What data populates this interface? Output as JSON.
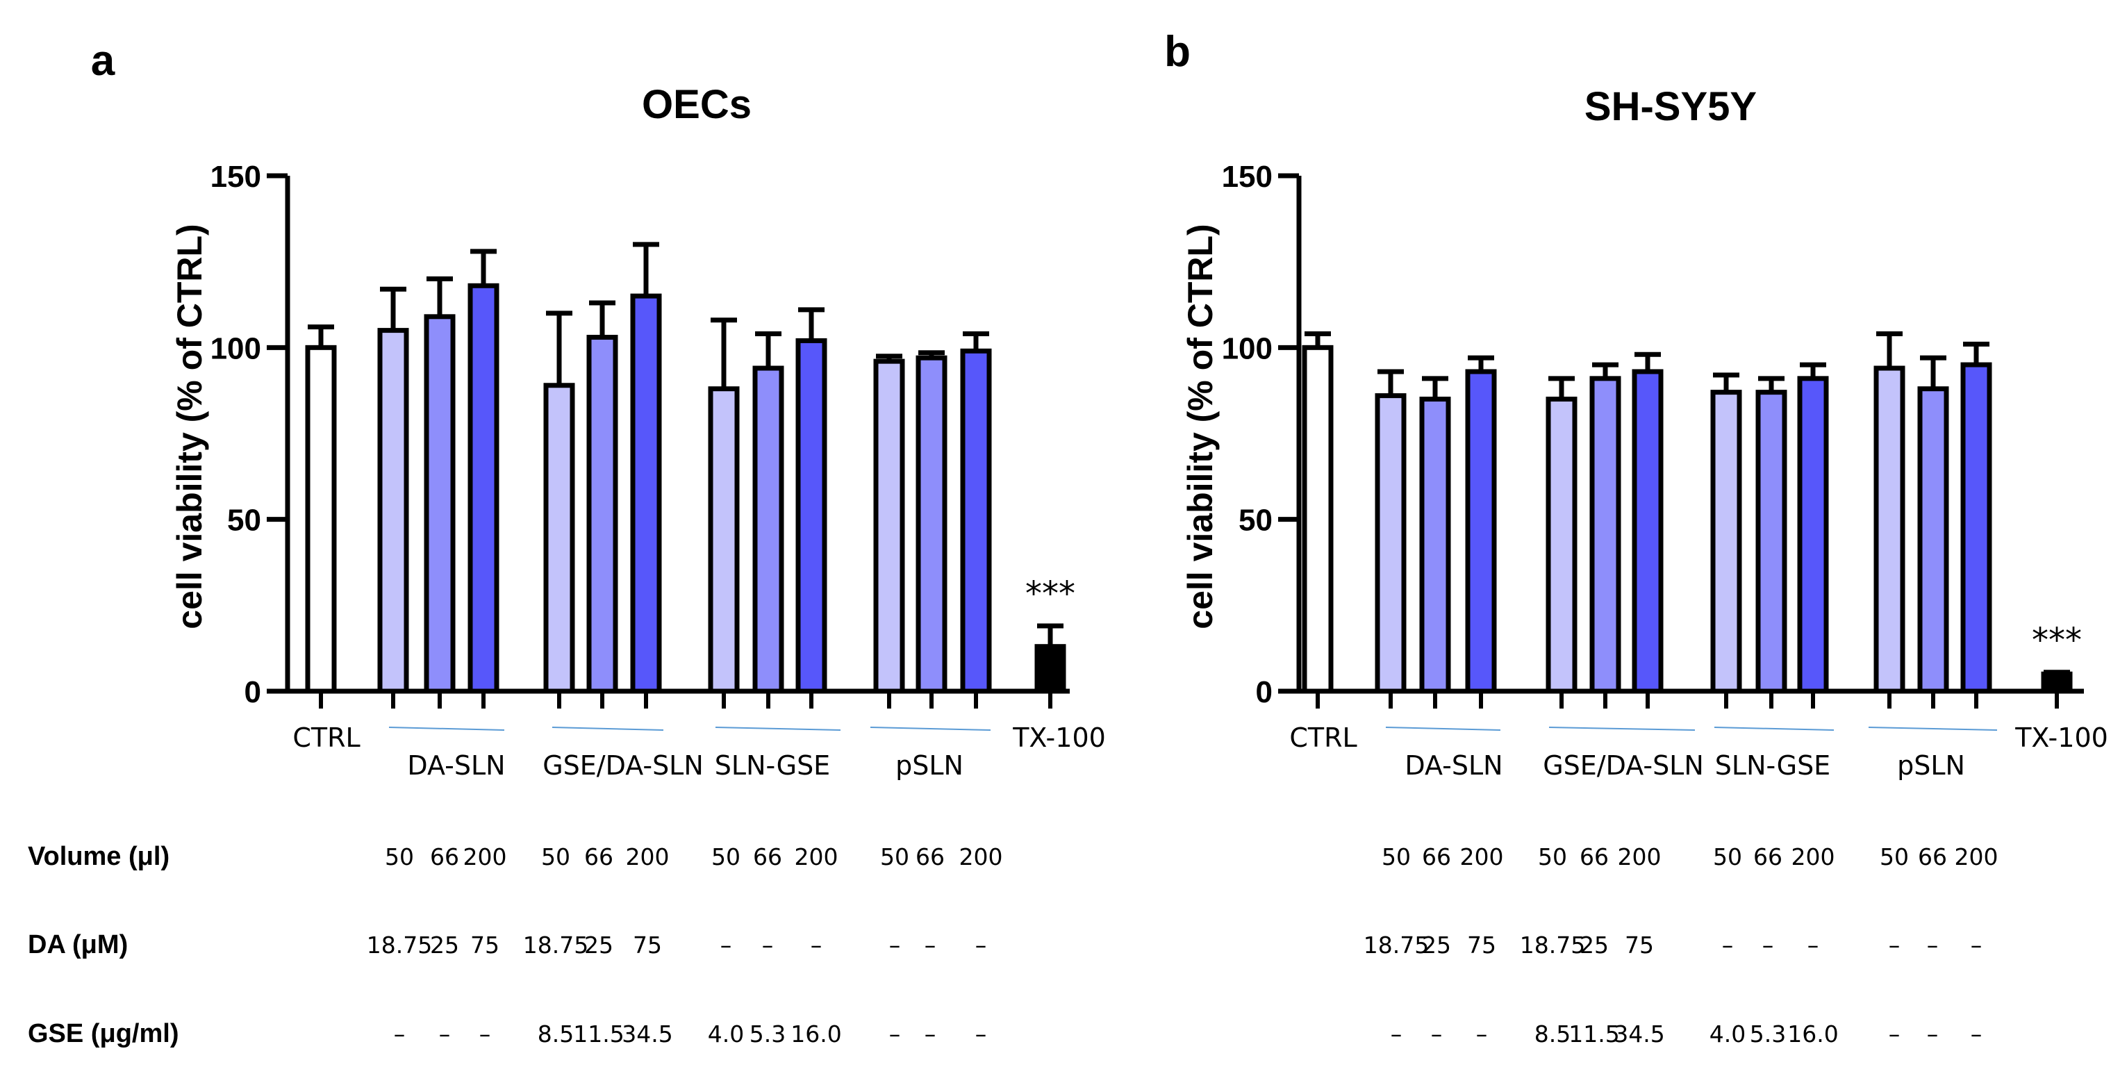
{
  "chart_data": [
    {
      "panel": "a",
      "title": "OECs",
      "type": "bar",
      "ylabel": "cell viability (%  of CTRL)",
      "ylim": [
        0,
        150
      ],
      "yticks": [
        "0",
        "50",
        "100",
        "150"
      ],
      "groups": [
        {
          "label": "CTRL",
          "bars": [
            {
              "value": 100,
              "err": 6,
              "shade": "white"
            }
          ]
        },
        {
          "label": "DA-SLN",
          "bars": [
            {
              "value": 105,
              "err": 12,
              "shade": "light"
            },
            {
              "value": 109,
              "err": 11,
              "shade": "mid"
            },
            {
              "value": 118,
              "err": 10,
              "shade": "dark"
            }
          ]
        },
        {
          "label": "GSE/DA-SLN",
          "bars": [
            {
              "value": 89,
              "err": 21,
              "shade": "light"
            },
            {
              "value": 103,
              "err": 10,
              "shade": "mid"
            },
            {
              "value": 115,
              "err": 15,
              "shade": "dark"
            }
          ]
        },
        {
          "label": "SLN-GSE",
          "bars": [
            {
              "value": 88,
              "err": 20,
              "shade": "light"
            },
            {
              "value": 94,
              "err": 10,
              "shade": "mid"
            },
            {
              "value": 102,
              "err": 9,
              "shade": "dark"
            }
          ]
        },
        {
          "label": "pSLN",
          "bars": [
            {
              "value": 96,
              "err": 1.5,
              "shade": "light"
            },
            {
              "value": 97,
              "err": 1.5,
              "shade": "mid"
            },
            {
              "value": 99,
              "err": 5,
              "shade": "dark"
            }
          ]
        },
        {
          "label": "TX-100",
          "bars": [
            {
              "value": 13,
              "err": 6,
              "shade": "black"
            }
          ],
          "annotation": "***"
        }
      ],
      "table": {
        "volume": [
          "50",
          "66",
          "200",
          "50",
          "66",
          "200",
          "50",
          "66",
          "200",
          "50",
          "66",
          "200"
        ],
        "da": [
          "18.75",
          "25",
          "75",
          "18.75",
          "25",
          "75",
          "–",
          "–",
          "–",
          "–",
          "–",
          "–"
        ],
        "gse": [
          "–",
          "–",
          "–",
          "8.5",
          "11.5",
          "34.5",
          "4.0",
          "5.3",
          "16.0",
          "–",
          "–",
          "–"
        ]
      }
    },
    {
      "panel": "b",
      "title": "SH-SY5Y",
      "type": "bar",
      "ylabel": "cell viability (%  of CTRL)",
      "ylim": [
        0,
        150
      ],
      "yticks": [
        "0",
        "50",
        "100",
        "150"
      ],
      "groups": [
        {
          "label": "CTRL",
          "bars": [
            {
              "value": 100,
              "err": 4,
              "shade": "white"
            }
          ]
        },
        {
          "label": "DA-SLN",
          "bars": [
            {
              "value": 86,
              "err": 7,
              "shade": "light"
            },
            {
              "value": 85,
              "err": 6,
              "shade": "mid"
            },
            {
              "value": 93,
              "err": 4,
              "shade": "dark"
            }
          ]
        },
        {
          "label": "GSE/DA-SLN",
          "bars": [
            {
              "value": 85,
              "err": 6,
              "shade": "light"
            },
            {
              "value": 91,
              "err": 4,
              "shade": "mid"
            },
            {
              "value": 93,
              "err": 5,
              "shade": "dark"
            }
          ]
        },
        {
          "label": "SLN-GSE",
          "bars": [
            {
              "value": 87,
              "err": 5,
              "shade": "light"
            },
            {
              "value": 87,
              "err": 4,
              "shade": "mid"
            },
            {
              "value": 91,
              "err": 4,
              "shade": "dark"
            }
          ]
        },
        {
          "label": "pSLN",
          "bars": [
            {
              "value": 94,
              "err": 10,
              "shade": "light"
            },
            {
              "value": 88,
              "err": 9,
              "shade": "mid"
            },
            {
              "value": 95,
              "err": 6,
              "shade": "dark"
            }
          ]
        },
        {
          "label": "TX-100",
          "bars": [
            {
              "value": 5,
              "err": 0.5,
              "shade": "black"
            }
          ],
          "annotation": "***"
        }
      ],
      "table": {
        "volume": [
          "50",
          "66",
          "200",
          "50",
          "66",
          "200",
          "50",
          "66",
          "200",
          "50",
          "66",
          "200"
        ],
        "da": [
          "18.75",
          "25",
          "75",
          "18.75",
          "25",
          "75",
          "–",
          "–",
          "–",
          "–",
          "–",
          "–"
        ],
        "gse": [
          "–",
          "–",
          "–",
          "8.5",
          "11.5",
          "34.5",
          "4.0",
          "5.3",
          "16.0",
          "–",
          "–",
          "–"
        ]
      }
    }
  ],
  "row_labels": {
    "volume": "Volume (μl)",
    "da": "DA  (μM)",
    "gse": "GSE  (μg/ml)"
  },
  "colors": {
    "white": "#ffffff",
    "light": "#c3c3fb",
    "mid": "#8e8efb",
    "dark": "#5757fa",
    "black": "#000000",
    "underline": "#5b9bd5"
  }
}
